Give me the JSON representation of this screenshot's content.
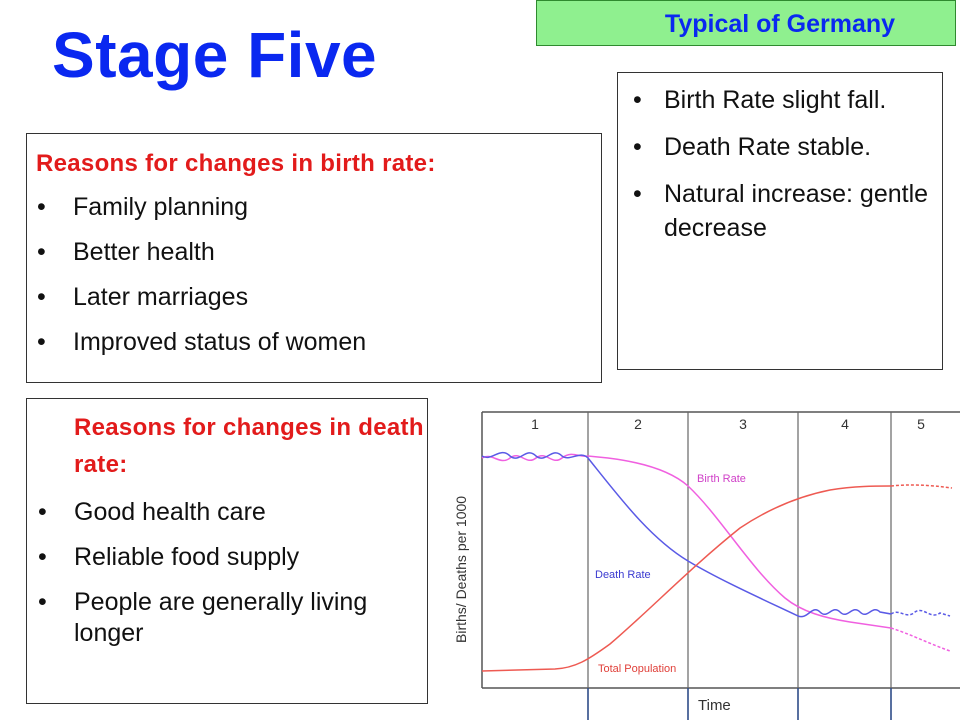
{
  "title": "Stage Five",
  "tag": "Typical of Germany",
  "summary": {
    "items": [
      "Birth Rate slight fall.",
      "Death Rate stable.",
      "Natural increase: gentle decrease"
    ]
  },
  "birth_reasons": {
    "heading": "Reasons for changes in birth rate:",
    "items": [
      "Family planning",
      "Better health",
      "Later marriages",
      "Improved status of women"
    ]
  },
  "death_reasons": {
    "heading": "Reasons for changes in death rate:",
    "items": [
      "Good health care",
      "Reliable food supply",
      "People are generally living longer"
    ]
  },
  "diagram": {
    "stages": [
      "1",
      "2",
      "3",
      "4",
      "5"
    ],
    "ylabel": "Births/ Deaths per 1000",
    "xlabel": "Time",
    "labels": {
      "birth": "Birth Rate",
      "death": "Death Rate",
      "population": "Total Population"
    },
    "colors": {
      "birth": "#f060e0",
      "death": "#5a5ae6",
      "population": "#ee5a52",
      "dividers": "#2b4a8a"
    }
  }
}
